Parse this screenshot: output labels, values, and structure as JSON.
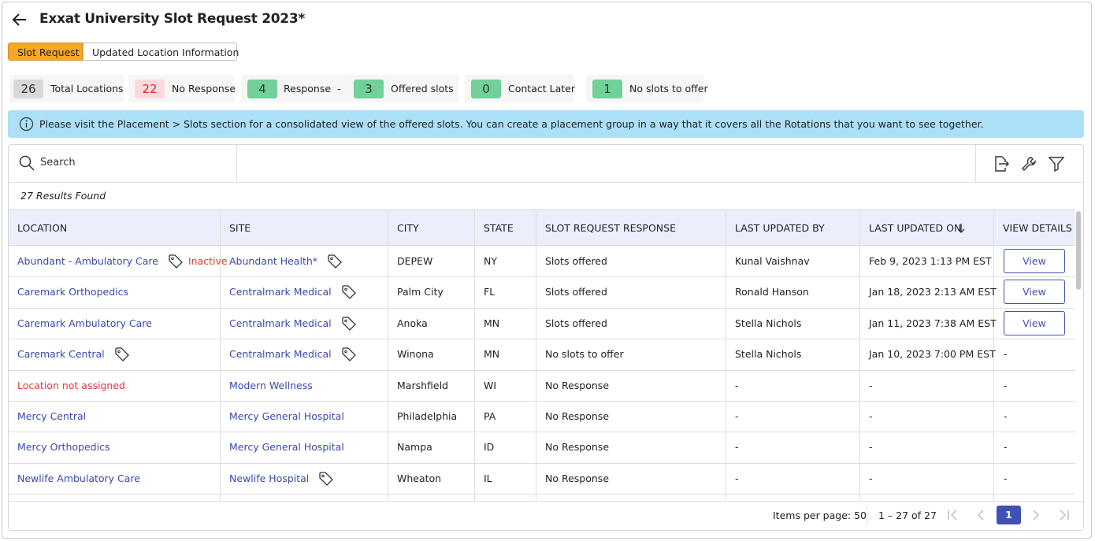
{
  "header": {
    "title": "Exxat University Slot Request 2023*"
  },
  "tabs": [
    "Slot Request",
    "Updated Location Information"
  ],
  "stats": [
    {
      "count": 26,
      "label": "Total Locations",
      "color": "#d9d9d9",
      "text_color": "#333333"
    },
    {
      "count": 22,
      "label": "No Response",
      "color": "#fbd9dc",
      "text_color": "#d32f2f"
    },
    {
      "count": 4,
      "label": "Response",
      "color": "#72d199",
      "text_color": "#1f3d2a"
    },
    {
      "count": 3,
      "label": "Offered slots",
      "color": "#72d199",
      "text_color": "#1f3d2a"
    },
    {
      "count": 0,
      "label": "Contact Later",
      "color": "#72d199",
      "text_color": "#1f3d2a"
    },
    {
      "count": 1,
      "label": "No slots to offer",
      "color": "#72d199",
      "text_color": "#1f3d2a"
    }
  ],
  "stats_separator": "-",
  "notice": "Please visit the Placement > Slots section for a consolidated view of the offered slots. You can create a placement group in a way that it covers all the Rotations that you want to see together.",
  "search_placeholder": "Search",
  "results": "27 Results Found",
  "table": {
    "columns": [
      "LOCATION",
      "SITE",
      "CITY",
      "STATE",
      "SLOT REQUEST RESPONSE",
      "LAST UPDATED BY",
      "LAST UPDATED ON",
      "VIEW DETAILS"
    ],
    "rows": [
      {
        "location": "Abundant - Ambulatory Care",
        "location_tag": true,
        "status": "Inactive",
        "site": "Abundant Health*",
        "site_tag": true,
        "city": "DEPEW",
        "state": "NY",
        "response": "Slots offered",
        "updated_by": "Kunal Vaishnav",
        "updated_on": "Feb 9, 2023 1:13 PM EST",
        "view": "View"
      },
      {
        "location": "Caremark Orthopedics",
        "site": "Centralmark Medical",
        "site_tag": true,
        "city": "Palm City",
        "state": "FL",
        "response": "Slots offered",
        "updated_by": "Ronald Hanson",
        "updated_on": "Jan 18, 2023 2:13 AM EST",
        "view": "View"
      },
      {
        "location": "Caremark Ambulatory Care",
        "site": "Centralmark Medical",
        "site_tag": true,
        "city": "Anoka",
        "state": "MN",
        "response": "Slots offered",
        "updated_by": "Stella Nichols",
        "updated_on": "Jan 11, 2023 7:38 AM EST",
        "view": "View"
      },
      {
        "location": "Caremark Central",
        "location_tag": true,
        "site": "Centralmark Medical",
        "site_tag": true,
        "city": "Winona",
        "state": "MN",
        "response": "No slots to offer",
        "updated_by": "Stella Nichols",
        "updated_on": "Jan 10, 2023 7:00 PM EST",
        "view_text": "-"
      },
      {
        "location": "Location not assigned",
        "location_color": "#e53935",
        "site": "Modern Wellness",
        "city": "Marshfield",
        "state": "WI",
        "response": "No Response",
        "updated_by": "-",
        "updated_on": "-",
        "view_text": "-"
      },
      {
        "location": "Mercy Central",
        "site": "Mercy General Hospital",
        "city": "Philadelphia",
        "state": "PA",
        "response": "No Response",
        "updated_by": "-",
        "updated_on": "-",
        "view_text": "-"
      },
      {
        "location": "Mercy Orthopedics",
        "site": "Mercy General Hospital",
        "city": "Nampa",
        "state": "ID",
        "response": "No Response",
        "updated_by": "-",
        "updated_on": "-",
        "view_text": "-"
      },
      {
        "location": "Newlife Ambulatory Care",
        "site": "Newlife Hospital",
        "site_tag": true,
        "city": "Wheaton",
        "state": "IL",
        "response": "No Response",
        "updated_by": "-",
        "updated_on": "-",
        "view_text": "-"
      }
    ]
  },
  "pagination": {
    "items_per_page": "Items per page: 50",
    "range": "1 – 27 of 27",
    "page": 1
  }
}
